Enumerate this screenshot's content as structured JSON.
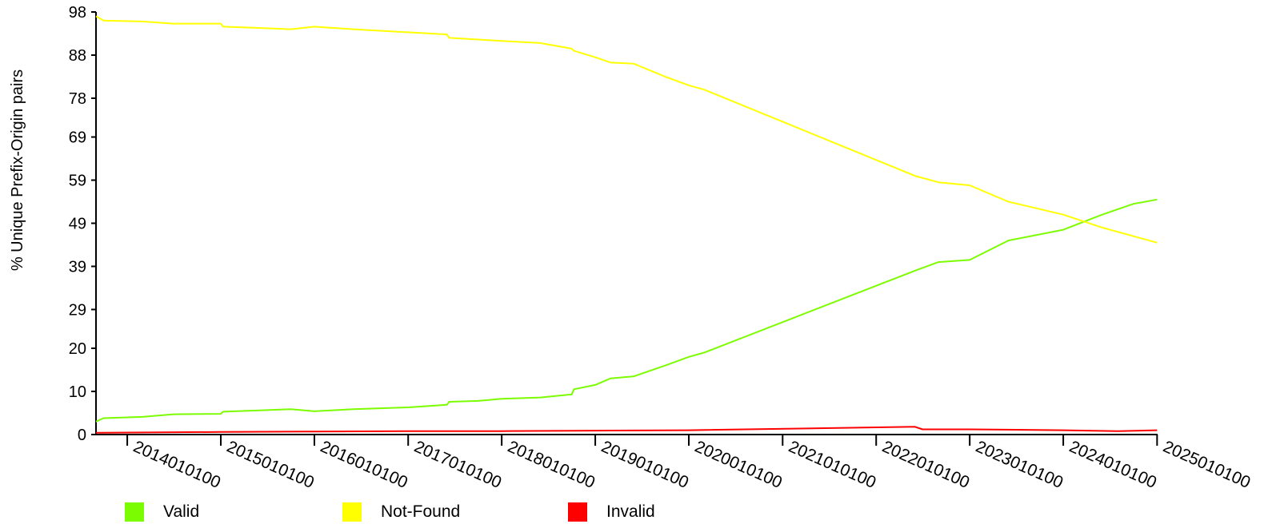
{
  "chart_data": {
    "type": "line",
    "title": "",
    "xlabel": "",
    "ylabel": "% Unique Prefix-Origin pairs",
    "x_ticks": [
      "2014010100",
      "2015010100",
      "2016010100",
      "2017010100",
      "2018010100",
      "2019010100",
      "2020010100",
      "2021010100",
      "2022010100",
      "2023010100",
      "2024010100",
      "2025010100"
    ],
    "y_ticks": [
      "0",
      "10",
      "20",
      "29",
      "39",
      "49",
      "59",
      "69",
      "78",
      "88",
      "98"
    ],
    "ylim": [
      0,
      98
    ],
    "xlim": [
      "2013-09-01",
      "2025-01-03"
    ],
    "grid": false,
    "legend_position": "bottom",
    "series": [
      {
        "name": "Valid",
        "color": "#7CFC00",
        "points": [
          [
            "2013-09-01",
            3.0
          ],
          [
            "2013-10-01",
            3.8
          ],
          [
            "2014-03-01",
            4.1
          ],
          [
            "2014-07-01",
            4.7
          ],
          [
            "2015-01-01",
            4.8
          ],
          [
            "2015-01-10",
            5.3
          ],
          [
            "2015-06-01",
            5.6
          ],
          [
            "2015-10-01",
            5.9
          ],
          [
            "2016-01-01",
            5.4
          ],
          [
            "2016-06-01",
            5.9
          ],
          [
            "2017-01-01",
            6.3
          ],
          [
            "2017-06-01",
            6.9
          ],
          [
            "2017-06-10",
            7.6
          ],
          [
            "2017-10-01",
            7.8
          ],
          [
            "2018-01-01",
            8.3
          ],
          [
            "2018-06-01",
            8.6
          ],
          [
            "2018-10-01",
            9.3
          ],
          [
            "2018-10-10",
            10.5
          ],
          [
            "2019-01-01",
            11.5
          ],
          [
            "2019-03-01",
            13.0
          ],
          [
            "2019-06-01",
            13.5
          ],
          [
            "2019-10-01",
            16.0
          ],
          [
            "2020-01-01",
            18.0
          ],
          [
            "2020-03-01",
            19.0
          ],
          [
            "2022-06-01",
            38.0
          ],
          [
            "2022-09-01",
            40.0
          ],
          [
            "2023-01-01",
            40.5
          ],
          [
            "2023-06-01",
            45.0
          ],
          [
            "2024-01-01",
            47.5
          ],
          [
            "2024-06-01",
            51.0
          ],
          [
            "2024-10-01",
            53.5
          ],
          [
            "2025-01-01",
            54.5
          ]
        ]
      },
      {
        "name": "Not-Found",
        "color": "#FFFF00",
        "points": [
          [
            "2013-09-01",
            97.0
          ],
          [
            "2013-10-01",
            96.0
          ],
          [
            "2014-03-01",
            95.8
          ],
          [
            "2014-07-01",
            95.3
          ],
          [
            "2015-01-01",
            95.3
          ],
          [
            "2015-01-10",
            94.6
          ],
          [
            "2015-06-01",
            94.3
          ],
          [
            "2015-10-01",
            94.0
          ],
          [
            "2016-01-01",
            94.6
          ],
          [
            "2016-06-01",
            94.0
          ],
          [
            "2017-01-01",
            93.3
          ],
          [
            "2017-06-01",
            92.8
          ],
          [
            "2017-06-10",
            92.0
          ],
          [
            "2017-10-01",
            91.6
          ],
          [
            "2018-01-01",
            91.3
          ],
          [
            "2018-06-01",
            90.8
          ],
          [
            "2018-10-01",
            89.5
          ],
          [
            "2018-10-10",
            89.0
          ],
          [
            "2019-01-01",
            87.5
          ],
          [
            "2019-03-01",
            86.3
          ],
          [
            "2019-06-01",
            86.0
          ],
          [
            "2019-10-01",
            83.0
          ],
          [
            "2020-01-01",
            81.0
          ],
          [
            "2020-03-01",
            80.0
          ],
          [
            "2022-06-01",
            60.0
          ],
          [
            "2022-09-01",
            58.5
          ],
          [
            "2023-01-01",
            57.8
          ],
          [
            "2023-06-01",
            54.0
          ],
          [
            "2024-01-01",
            51.0
          ],
          [
            "2024-06-01",
            48.0
          ],
          [
            "2024-10-01",
            46.0
          ],
          [
            "2025-01-01",
            44.5
          ]
        ]
      },
      {
        "name": "Invalid",
        "color": "#FF0000",
        "points": [
          [
            "2013-09-01",
            0.4
          ],
          [
            "2015-01-01",
            0.6
          ],
          [
            "2016-01-01",
            0.7
          ],
          [
            "2017-01-01",
            0.8
          ],
          [
            "2018-01-01",
            0.8
          ],
          [
            "2019-01-01",
            0.9
          ],
          [
            "2020-01-01",
            1.0
          ],
          [
            "2022-06-01",
            1.8
          ],
          [
            "2022-07-01",
            1.2
          ],
          [
            "2023-01-01",
            1.2
          ],
          [
            "2024-01-01",
            1.0
          ],
          [
            "2024-08-01",
            0.8
          ],
          [
            "2025-01-01",
            1.0
          ]
        ]
      }
    ],
    "annotations": []
  }
}
